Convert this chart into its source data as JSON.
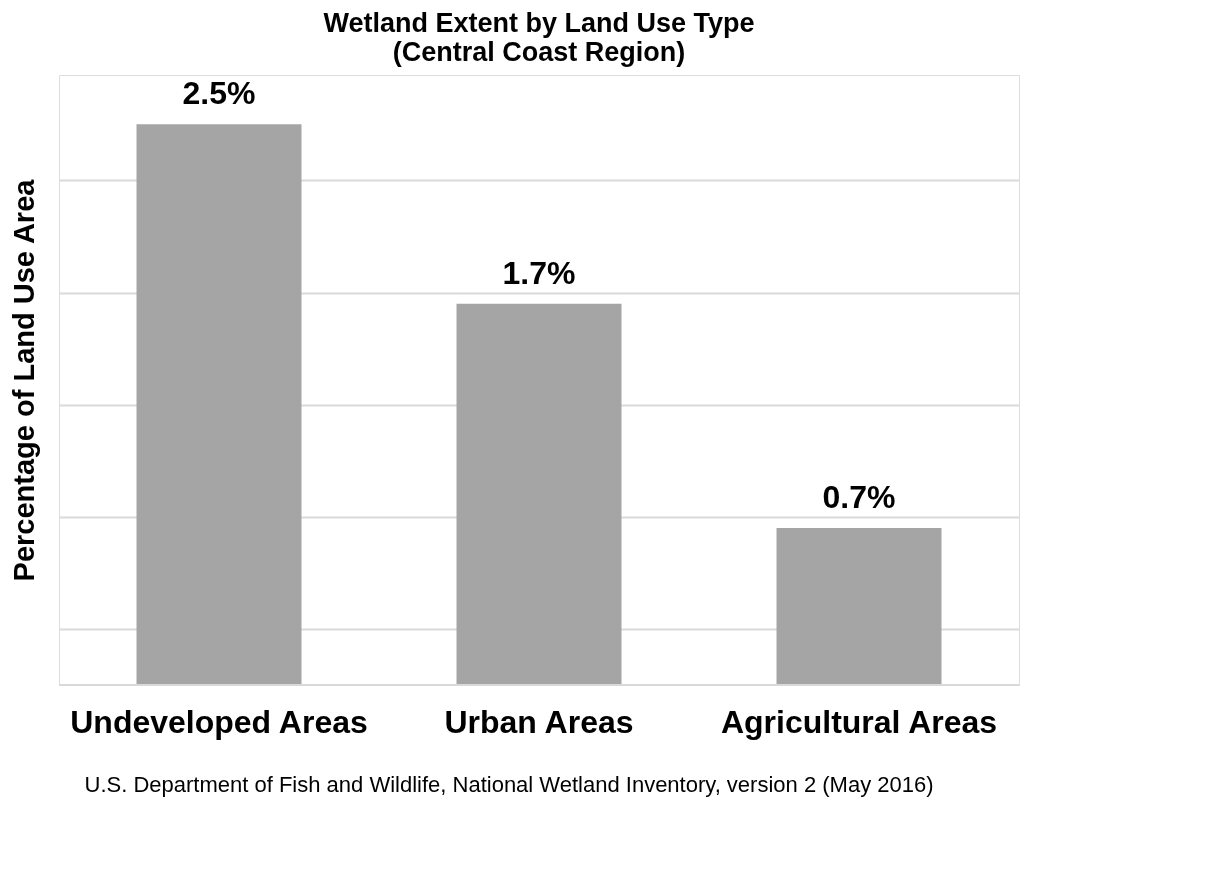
{
  "chart_data": {
    "type": "bar",
    "title": [
      "Wetland Extent by Land Use Type",
      "(Central Coast Region)"
    ],
    "ylabel": "Percentage of Land Use Area",
    "categories": [
      "Undeveloped Areas",
      "Urban Areas",
      "Agricultural Areas"
    ],
    "values": [
      2.5,
      1.7,
      0.7
    ],
    "color": "#a5a5a5",
    "value_labels": [
      "2.5%",
      "1.7%",
      "0.7%"
    ],
    "ylim": [
      0,
      2.72
    ],
    "yticks": [
      {
        "value": 0.25,
        "label": null
      },
      {
        "value": 0.75,
        "label": null
      },
      {
        "value": 1.25,
        "label": null
      },
      {
        "value": 1.75,
        "label": null
      },
      {
        "value": 2.25,
        "label": null
      }
    ],
    "grid": "y",
    "tick_labels": "x",
    "annotations": [
      "U.S. Department of Fish and Wildlife, National Wetland Inventory, version 2 (May 2016)"
    ]
  }
}
